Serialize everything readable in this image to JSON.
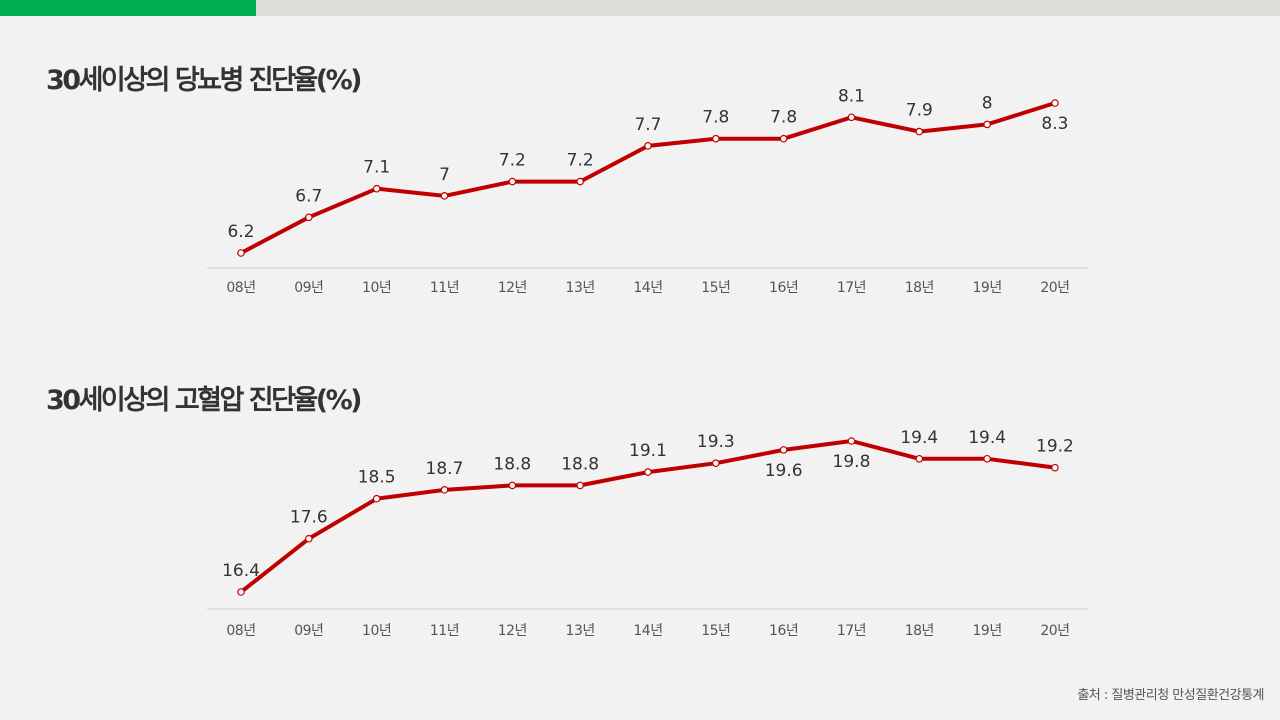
{
  "source": "출처 : 질병관리청 만성질환건강통계",
  "colors": {
    "line": "#c00000",
    "accent": "#00b050",
    "text": "#333333",
    "axis": "#cfcfcf"
  },
  "chart_data": [
    {
      "type": "line",
      "title": "30세이상의 당뇨병 진단율(%)",
      "categories": [
        "08년",
        "09년",
        "10년",
        "11년",
        "12년",
        "13년",
        "14년",
        "15년",
        "16년",
        "17년",
        "18년",
        "19년",
        "20년"
      ],
      "values": [
        6.2,
        6.7,
        7.1,
        7.0,
        7.2,
        7.2,
        7.7,
        7.8,
        7.8,
        8.1,
        7.9,
        8.0,
        8.3
      ],
      "value_labels": [
        "6.2",
        "6.7",
        "7.1",
        "7",
        "7.2",
        "7.2",
        "7.7",
        "7.8",
        "7.8",
        "8.1",
        "7.9",
        "8",
        "8.3"
      ],
      "ylim": [
        5.8,
        8.5
      ],
      "grid": false
    },
    {
      "type": "line",
      "title": "30세이상의 고혈압 진단율(%)",
      "categories": [
        "08년",
        "09년",
        "10년",
        "11년",
        "12년",
        "13년",
        "14년",
        "15년",
        "16년",
        "17년",
        "18년",
        "19년",
        "20년"
      ],
      "values": [
        16.4,
        17.6,
        18.5,
        18.7,
        18.8,
        18.8,
        19.1,
        19.3,
        19.6,
        19.8,
        19.4,
        19.4,
        19.2
      ],
      "value_labels": [
        "16.4",
        "17.6",
        "18.5",
        "18.7",
        "18.8",
        "18.8",
        "19.1",
        "19.3",
        "19.6",
        "19.8",
        "19.4",
        "19.4",
        "19.2"
      ],
      "ylim": [
        16.0,
        20.0
      ],
      "grid": false
    }
  ]
}
